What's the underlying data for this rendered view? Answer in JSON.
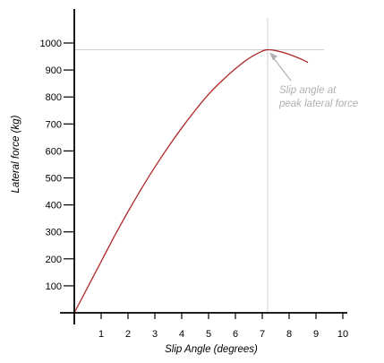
{
  "colors": {
    "curve": "#b0282a",
    "axis": "#000000",
    "reference_lines": "#d0d0d0",
    "annotation": "#b0b0b0",
    "background": "#ffffff"
  },
  "chart_data": {
    "type": "line",
    "title": "",
    "xlabel": "Slip Angle (degrees)",
    "ylabel": "Lateral force (kg)",
    "xlim": [
      0,
      10
    ],
    "ylim": [
      0,
      1000
    ],
    "x_ticks": [
      "1",
      "2",
      "3",
      "4",
      "5",
      "6",
      "7",
      "8",
      "9",
      "10"
    ],
    "y_ticks": [
      "100",
      "200",
      "300",
      "400",
      "500",
      "600",
      "700",
      "800",
      "900",
      "1000"
    ],
    "grid": false,
    "series": [
      {
        "x": [
          0,
          0.5,
          1,
          1.5,
          2,
          2.5,
          3,
          3.5,
          4,
          4.5,
          5,
          5.5,
          6,
          6.5,
          7,
          7.2,
          7.5,
          8,
          8.5,
          8.7
        ],
        "values": [
          0,
          95,
          190,
          285,
          375,
          460,
          540,
          615,
          685,
          750,
          810,
          860,
          905,
          943,
          970,
          975,
          972,
          958,
          938,
          928
        ]
      }
    ],
    "peak": {
      "x": 7.2,
      "y": 975
    },
    "annotation": {
      "lines": [
        "Slip angle at",
        "peak lateral force"
      ]
    }
  }
}
